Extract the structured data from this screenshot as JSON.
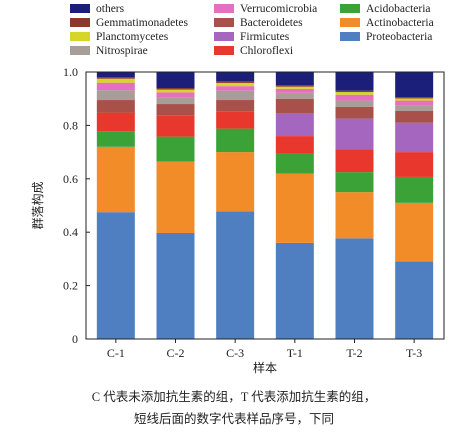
{
  "chart_data": {
    "type": "bar",
    "stacked": true,
    "categories": [
      "C-1",
      "C-2",
      "C-3",
      "T-1",
      "T-2",
      "T-3"
    ],
    "xlabel": "样本",
    "ylabel": "群落构成",
    "ylim": [
      0,
      1.0
    ],
    "yticks": [
      "0",
      "0.2",
      "0.4",
      "0.6",
      "0.8",
      "1.0"
    ],
    "legend_position": "top",
    "series": [
      {
        "name": "Proteobacteria",
        "color": "#4f7fc0",
        "values": [
          0.475,
          0.397,
          0.478,
          0.36,
          0.377,
          0.29
        ]
      },
      {
        "name": "Actinobacteria",
        "color": "#f28c28",
        "values": [
          0.245,
          0.268,
          0.222,
          0.26,
          0.173,
          0.22
        ]
      },
      {
        "name": "Acidobacteria",
        "color": "#3aa236",
        "values": [
          0.058,
          0.093,
          0.088,
          0.075,
          0.075,
          0.097
        ]
      },
      {
        "name": "Chloroflexi",
        "color": "#e8382e",
        "values": [
          0.07,
          0.08,
          0.065,
          0.065,
          0.085,
          0.093
        ]
      },
      {
        "name": "Firmicutes",
        "color": "#a566c0",
        "values": [
          0.0,
          0.0,
          0.0,
          0.085,
          0.115,
          0.11
        ]
      },
      {
        "name": "Bacteroidetes",
        "color": "#a8504a",
        "values": [
          0.047,
          0.042,
          0.042,
          0.055,
          0.045,
          0.045
        ]
      },
      {
        "name": "Nitrospirae",
        "color": "#a89d98",
        "values": [
          0.037,
          0.026,
          0.035,
          0.022,
          0.023,
          0.021
        ]
      },
      {
        "name": "Verrucomicrobia",
        "color": "#e86fc0",
        "values": [
          0.028,
          0.018,
          0.017,
          0.015,
          0.022,
          0.017
        ]
      },
      {
        "name": "Planctomycetes",
        "color": "#d6d62a",
        "values": [
          0.015,
          0.01,
          0.012,
          0.008,
          0.01,
          0.008
        ]
      },
      {
        "name": "Gemmatimonadetes",
        "color": "#8b3a2a",
        "values": [
          0.005,
          0.006,
          0.006,
          0.005,
          0.005,
          0.005
        ]
      },
      {
        "name": "others",
        "color": "#1b1f7a",
        "values": [
          0.02,
          0.06,
          0.035,
          0.05,
          0.07,
          0.094
        ]
      }
    ],
    "legend_order": [
      "others",
      "Gemmatimonadetes",
      "Planctomycetes",
      "Nitrospirae",
      "Verrucomicrobia",
      "Bacteroidetes",
      "Firmicutes",
      "Chloroflexi",
      "Acidobacteria",
      "Actinobacteria",
      "Proteobacteria"
    ]
  },
  "caption": {
    "line1": "C 代表未添加抗生素的组，T 代表添加抗生素的组，",
    "line2": "短线后面的数字代表样品序号，下同"
  }
}
